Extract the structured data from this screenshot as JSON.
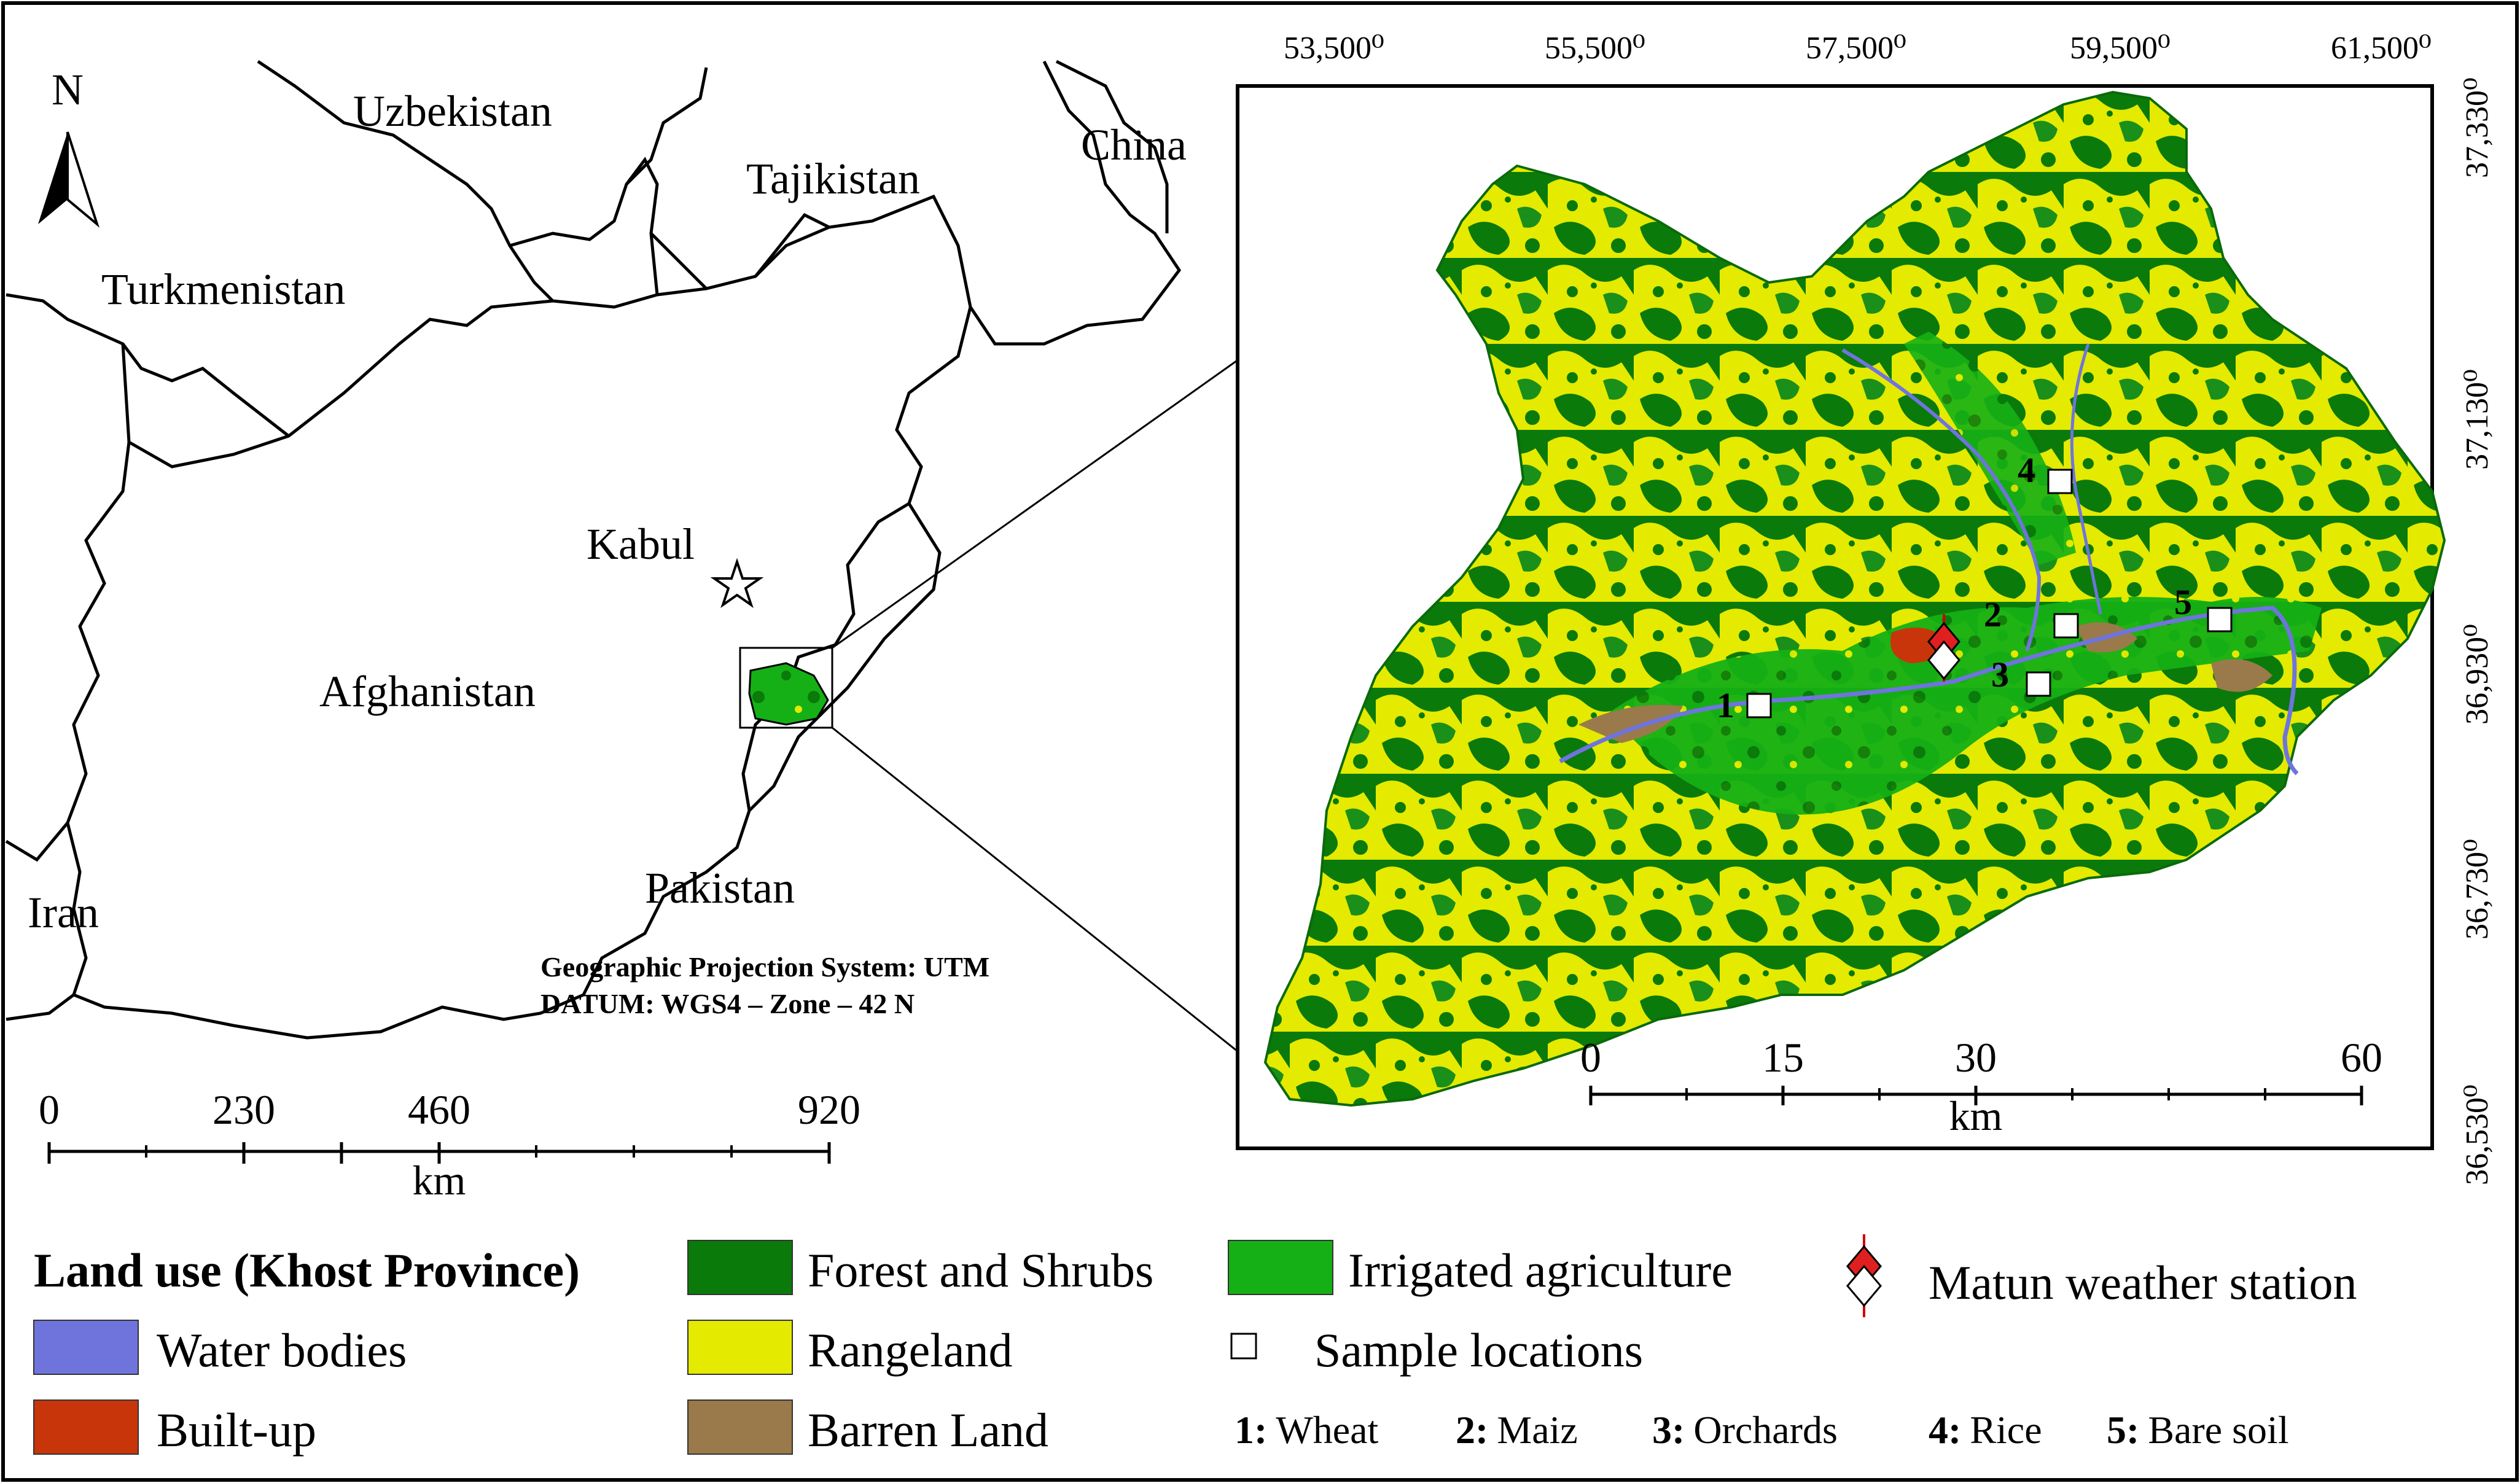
{
  "north_label": "N",
  "countries": {
    "uzbekistan": "Uzbekistan",
    "tajikistan": "Tajikistan",
    "china": "China",
    "turkmenistan": "Turkmenistan",
    "afghanistan": "Afghanistan",
    "kabul": "Kabul",
    "pakistan": "Pakistan",
    "iran": "Iran"
  },
  "projection": {
    "line1": "Geographic Projection System: UTM",
    "line2": "DATUM: WGS4 – Zone – 42 N"
  },
  "left_scale": {
    "ticks": [
      "0",
      "230",
      "460",
      "920"
    ],
    "unit": "km"
  },
  "inset": {
    "top_coords": [
      "53,500⁰",
      "55,500⁰",
      "57,500⁰",
      "59,500⁰",
      "61,500⁰"
    ],
    "right_coords": [
      "37,330⁰",
      "37,130⁰",
      "36,930⁰",
      "36,730⁰",
      "36,530⁰"
    ],
    "scale_ticks": [
      "0",
      "15",
      "30",
      "60"
    ],
    "scale_unit": "km",
    "samples": [
      {
        "num": "1"
      },
      {
        "num": "2"
      },
      {
        "num": "3"
      },
      {
        "num": "4"
      },
      {
        "num": "5"
      }
    ]
  },
  "legend": {
    "title": "Land use (Khost Province)",
    "items": [
      {
        "key": "forest",
        "label": "Forest and Shrubs",
        "color": "#0a7a0a"
      },
      {
        "key": "irrigated",
        "label": "Irrigated agriculture",
        "color": "#15b015"
      },
      {
        "key": "water",
        "label": "Water bodies",
        "color": "#6f74dd"
      },
      {
        "key": "rangeland",
        "label": "Rangeland",
        "color": "#e4ea00"
      },
      {
        "key": "builtup",
        "label": "Built-up",
        "color": "#c9350a"
      },
      {
        "key": "barren",
        "label": "Barren Land",
        "color": "#9a7a4a"
      }
    ],
    "station": "Matun weather station",
    "samples": "Sample locations",
    "codes": [
      {
        "num": "1:",
        "name": "Wheat"
      },
      {
        "num": "2:",
        "name": "Maiz"
      },
      {
        "num": "3:",
        "name": "Orchards"
      },
      {
        "num": "4:",
        "name": "Rice"
      },
      {
        "num": "5:",
        "name": "Bare soil"
      }
    ]
  }
}
